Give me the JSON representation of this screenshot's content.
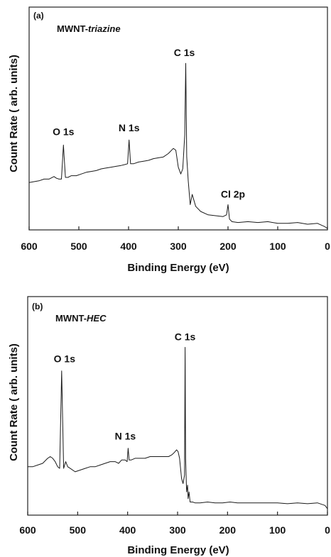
{
  "chart_data": [
    {
      "type": "line",
      "panel_label": "(a)",
      "sample_name": "MWNT-",
      "sample_suffix": "triazine",
      "xlabel": "Binding Energy (eV)",
      "ylabel": "Count Rate ( arb. units)",
      "xlim": [
        600,
        0
      ],
      "x_ticks": [
        "600",
        "500",
        "400",
        "300",
        "200",
        "100",
        "0"
      ],
      "peaks": [
        {
          "label": "O 1s",
          "x": 531
        },
        {
          "label": "N 1s",
          "x": 399
        },
        {
          "label": "C 1s",
          "x": 285
        },
        {
          "label": "Cl 2p",
          "x": 200
        }
      ],
      "series": [
        {
          "x": [
            600,
            590,
            580,
            570,
            560,
            550,
            545,
            540,
            535,
            531,
            527,
            522,
            515,
            505,
            495,
            485,
            475,
            465,
            455,
            445,
            435,
            425,
            415,
            408,
            402,
            399,
            396,
            390,
            380,
            370,
            360,
            350,
            340,
            330,
            320,
            310,
            305,
            300,
            295,
            291,
            287,
            285,
            283,
            280,
            276,
            272,
            265,
            255,
            240,
            225,
            210,
            203,
            200,
            197,
            192,
            180,
            160,
            140,
            120,
            100,
            80,
            60,
            40,
            20,
            5,
            0
          ],
          "y": [
            0.27,
            0.275,
            0.28,
            0.29,
            0.29,
            0.305,
            0.295,
            0.29,
            0.29,
            0.49,
            0.3,
            0.3,
            0.31,
            0.31,
            0.32,
            0.33,
            0.335,
            0.34,
            0.35,
            0.355,
            0.36,
            0.365,
            0.37,
            0.375,
            0.38,
            0.52,
            0.38,
            0.38,
            0.39,
            0.395,
            0.4,
            0.41,
            0.415,
            0.42,
            0.44,
            0.47,
            0.46,
            0.36,
            0.32,
            0.35,
            0.55,
            0.97,
            0.42,
            0.28,
            0.14,
            0.2,
            0.13,
            0.1,
            0.08,
            0.075,
            0.07,
            0.08,
            0.14,
            0.055,
            0.04,
            0.035,
            0.04,
            0.035,
            0.04,
            0.03,
            0.03,
            0.035,
            0.025,
            0.03,
            0.01,
            0.0
          ]
        }
      ]
    },
    {
      "type": "line",
      "panel_label": "(b)",
      "sample_name": "MWNT-",
      "sample_suffix": "HEC",
      "xlabel": "Binding Energy (eV)",
      "ylabel": "Count Rate ( arb. units)",
      "xlim": [
        600,
        0
      ],
      "x_ticks": [
        "600",
        "500",
        "400",
        "300",
        "200",
        "100",
        "0"
      ],
      "peaks": [
        {
          "label": "O 1s",
          "x": 532
        },
        {
          "label": "N 1s",
          "x": 399
        },
        {
          "label": "C 1s",
          "x": 285
        }
      ],
      "series": [
        {
          "x": [
            600,
            590,
            580,
            570,
            560,
            555,
            550,
            545,
            540,
            536,
            532,
            528,
            524,
            520,
            515,
            505,
            495,
            485,
            475,
            465,
            455,
            445,
            435,
            425,
            418,
            412,
            405,
            401,
            399,
            397,
            393,
            385,
            375,
            365,
            355,
            345,
            335,
            325,
            318,
            312,
            308,
            305,
            302,
            299,
            296,
            292,
            289,
            286,
            285,
            284,
            282,
            280,
            279,
            277,
            275,
            270,
            265,
            255,
            240,
            225,
            210,
            195,
            180,
            160,
            140,
            120,
            100,
            80,
            60,
            40,
            20,
            5,
            0
          ],
          "y": [
            0.25,
            0.25,
            0.26,
            0.27,
            0.3,
            0.31,
            0.3,
            0.28,
            0.25,
            0.24,
            0.82,
            0.24,
            0.28,
            0.25,
            0.24,
            0.22,
            0.23,
            0.24,
            0.25,
            0.25,
            0.26,
            0.27,
            0.28,
            0.28,
            0.27,
            0.29,
            0.29,
            0.28,
            0.36,
            0.29,
            0.29,
            0.3,
            0.3,
            0.3,
            0.31,
            0.31,
            0.31,
            0.31,
            0.31,
            0.32,
            0.33,
            0.34,
            0.35,
            0.34,
            0.3,
            0.18,
            0.15,
            0.2,
            0.96,
            0.3,
            0.1,
            0.14,
            0.06,
            0.1,
            0.04,
            0.04,
            0.035,
            0.035,
            0.04,
            0.035,
            0.035,
            0.04,
            0.035,
            0.035,
            0.035,
            0.035,
            0.035,
            0.03,
            0.035,
            0.03,
            0.035,
            0.02,
            0.0
          ]
        }
      ]
    }
  ]
}
